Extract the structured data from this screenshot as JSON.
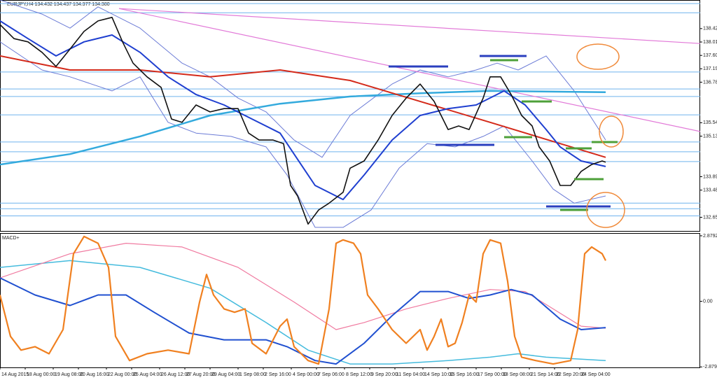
{
  "chart_data": [
    {
      "type": "line",
      "title": "EURJPY,H4 134.432 134.437 134.377 134.380",
      "xlim": [
        0,
        250
      ],
      "ylim": [
        132.24,
        139.3
      ],
      "yticks": [
        138.426,
        138.016,
        137.606,
        137.198,
        136.788,
        135.548,
        135.138,
        133.898,
        133.488,
        132.658
      ],
      "levels": [
        139.19,
        138.91,
        137.1,
        136.58,
        136.35,
        135.79,
        134.96,
        134.66,
        134.36,
        133.09,
        132.92,
        132.7
      ],
      "levels_color": "#6fb3ee",
      "series": [
        {
          "color": "#6b7bd6",
          "width": 1,
          "x": [
            0,
            15,
            25,
            35,
            50,
            65,
            75,
            85,
            95,
            105,
            115,
            125,
            140,
            150,
            160,
            170,
            177.5,
            185,
            195,
            205,
            216.25
          ],
          "values": [
            139.3,
            138.87,
            138.44,
            139.09,
            138.44,
            137.37,
            136.95,
            136.3,
            135.88,
            135.02,
            134.49,
            135.77,
            136.73,
            137.16,
            136.95,
            137.16,
            137.37,
            137.16,
            137.59,
            136.52,
            135.02
          ]
        },
        {
          "color": "#6b7bd6",
          "width": 1,
          "x": [
            0,
            15,
            25,
            40,
            50,
            60,
            70,
            82.5,
            95,
            102.5,
            112.5,
            122.5,
            132.5,
            142.5,
            152.5,
            162.5,
            172.5,
            180,
            190,
            197.5,
            205,
            216.25
          ],
          "values": [
            138.02,
            137.16,
            136.95,
            136.52,
            136.95,
            135.56,
            135.23,
            135.13,
            134.81,
            133.95,
            132.35,
            132.35,
            132.88,
            134.16,
            134.91,
            134.81,
            135.13,
            135.45,
            134.38,
            133.52,
            133.09,
            133.31
          ]
        },
        {
          "color": "#e27ad8",
          "width": 1.2,
          "x": [
            42.5,
            250
          ],
          "values": [
            139.04,
            137.97
          ]
        },
        {
          "color": "#e27ad8",
          "width": 1.2,
          "x": [
            42.5,
            250
          ],
          "values": [
            139.04,
            135.28
          ]
        },
        {
          "color": "#33aadd",
          "width": 2.5,
          "x": [
            0,
            25,
            50,
            75,
            100,
            125,
            150,
            175,
            216.25
          ],
          "values": [
            134.27,
            134.59,
            135.13,
            135.77,
            136.13,
            136.35,
            136.45,
            136.52,
            136.48
          ]
        },
        {
          "color": "#d42a1a",
          "width": 2,
          "x": [
            0,
            25,
            50,
            75,
            100,
            125,
            150,
            175,
            200,
            216.25
          ],
          "values": [
            137.59,
            137.16,
            137.16,
            136.95,
            137.16,
            136.84,
            136.2,
            135.56,
            134.91,
            134.49
          ]
        },
        {
          "color": "#1f3fd0",
          "width": 2,
          "x": [
            0,
            10,
            20,
            30,
            40,
            50,
            60,
            70,
            80,
            90,
            100,
            105,
            112.5,
            122.5,
            130,
            140,
            150,
            160,
            170,
            180,
            187.5,
            195,
            200,
            207.5,
            216.25
          ],
          "values": [
            138.66,
            138.12,
            137.59,
            138.02,
            138.23,
            137.7,
            136.95,
            136.41,
            136.09,
            135.66,
            135.23,
            134.59,
            133.63,
            133.2,
            133.95,
            135.02,
            135.77,
            135.98,
            136.09,
            136.52,
            136.09,
            135.34,
            134.81,
            134.38,
            134.21
          ]
        },
        {
          "color": "#111111",
          "width": 1.6,
          "x": [
            0,
            5,
            10,
            15,
            20,
            25,
            30,
            35,
            40,
            43.75,
            47.5,
            52.5,
            57.5,
            61.25,
            65,
            70,
            75,
            80,
            85,
            88.75,
            92.5,
            97.5,
            101.25,
            103.75,
            106.25,
            110,
            113.75,
            117.5,
            122.5,
            125,
            130,
            135,
            140,
            145,
            150,
            155,
            160,
            163.75,
            167.5,
            172.5,
            175,
            178.75,
            182.5,
            186.25,
            190,
            192.5,
            196.25,
            200,
            203.75,
            207.5,
            211.25,
            215,
            216.25
          ],
          "values": [
            138.55,
            138.12,
            138.02,
            137.7,
            137.27,
            137.8,
            138.34,
            138.66,
            138.77,
            138.02,
            137.37,
            136.95,
            136.63,
            135.66,
            135.56,
            136.09,
            135.88,
            135.98,
            135.98,
            135.23,
            135.02,
            135.02,
            134.91,
            133.63,
            133.31,
            132.45,
            132.88,
            133.09,
            133.42,
            134.16,
            134.38,
            135.02,
            135.77,
            136.3,
            136.73,
            136.2,
            135.34,
            135.45,
            135.34,
            136.3,
            136.95,
            136.95,
            136.41,
            135.77,
            135.45,
            134.81,
            134.38,
            133.63,
            133.63,
            134.06,
            134.27,
            134.38,
            134.34
          ]
        }
      ]
    },
    {
      "type": "line",
      "title": "MACD+",
      "xlim": [
        0,
        250
      ],
      "ylim": [
        -2.9,
        3.0
      ],
      "yticks": [
        2.8792,
        {
          "value": 0,
          "label": "0.00"
        },
        -2.8792
      ],
      "xticks": [
        {
          "value": 0,
          "label": "14 Aug 2015"
        },
        {
          "value": 9,
          "label": "18 Aug 00:00"
        },
        {
          "value": 19,
          "label": "19 Aug 08:00"
        },
        {
          "value": 28,
          "label": "20 Aug 16:00"
        },
        {
          "value": 38,
          "label": "22 Aug 00:00"
        },
        {
          "value": 47,
          "label": "25 Aug 04:00"
        },
        {
          "value": 57,
          "label": "26 Aug 12:00"
        },
        {
          "value": 66,
          "label": "27 Aug 20:00"
        },
        {
          "value": 75,
          "label": "29 Aug 04:00"
        },
        {
          "value": 85,
          "label": "1 Sep 08:00"
        },
        {
          "value": 94,
          "label": "2 Sep 16:00"
        },
        {
          "value": 104,
          "label": "4 Sep 00:00"
        },
        {
          "value": 113,
          "label": "7 Sep 06:00"
        },
        {
          "value": 123,
          "label": "8 Sep 12:00"
        },
        {
          "value": 132,
          "label": "9 Sep 20:00"
        },
        {
          "value": 141,
          "label": "11 Sep 04:00"
        },
        {
          "value": 151,
          "label": "14 Sep 10:00"
        },
        {
          "value": 160,
          "label": "15 Sep 16:00"
        },
        {
          "value": 170,
          "label": "17 Sep 00:00"
        },
        {
          "value": 179,
          "label": "18 Sep 08:00"
        },
        {
          "value": 189,
          "label": "21 Sep 14:00"
        },
        {
          "value": 198,
          "label": "22 Sep 20:00"
        },
        {
          "value": 207,
          "label": "24 Sep 04:00"
        }
      ],
      "series": [
        {
          "color": "#44bbdd",
          "width": 1.5,
          "x": [
            0,
            25,
            50,
            75,
            95,
            110,
            125,
            140,
            160,
            175,
            185,
            195,
            216.25
          ],
          "values": [
            1.49,
            1.79,
            1.49,
            0.58,
            -0.93,
            -2.14,
            -2.75,
            -2.75,
            -2.6,
            -2.45,
            -2.3,
            -2.45,
            -2.6
          ]
        },
        {
          "color": "#f07aa0",
          "width": 1.2,
          "x": [
            0,
            25,
            45,
            65,
            85,
            105,
            120,
            130,
            145,
            160,
            175,
            187.5,
            197.5,
            207.5,
            216.25
          ],
          "values": [
            1.03,
            2.09,
            2.55,
            2.39,
            1.49,
            -0.03,
            -1.24,
            -0.93,
            -0.33,
            0.13,
            0.52,
            0.43,
            -0.33,
            -1.09,
            -1.18
          ]
        },
        {
          "color": "#2050d0",
          "width": 2,
          "x": [
            0,
            12.5,
            25,
            35,
            45,
            55,
            67.5,
            80,
            95,
            102.5,
            112.5,
            120,
            130,
            140,
            150,
            160,
            167.5,
            175,
            182.5,
            190,
            200,
            207.5,
            216.25
          ],
          "values": [
            1.03,
            0.28,
            -0.18,
            0.28,
            0.28,
            -0.48,
            -1.39,
            -1.69,
            -1.69,
            -1.99,
            -2.6,
            -2.75,
            -1.84,
            -0.63,
            0.43,
            0.43,
            0.13,
            0.28,
            0.52,
            0.28,
            -0.78,
            -1.24,
            -1.15
          ]
        },
        {
          "color": "#f08020",
          "width": 2.2,
          "x": [
            0,
            3.75,
            7.5,
            12.5,
            17.5,
            22.5,
            26.25,
            30,
            35,
            38.75,
            41.25,
            46.25,
            52.5,
            60,
            67.5,
            71.25,
            73.75,
            76.25,
            80,
            83.75,
            87.5,
            90,
            95,
            100,
            102.5,
            105,
            110,
            113.75,
            117.5,
            120,
            122.5,
            126.25,
            128.75,
            131.25,
            135,
            140,
            145,
            150,
            152.5,
            155,
            157.5,
            160,
            162.5,
            165,
            167.5,
            170,
            172.5,
            175,
            178.75,
            181.25,
            183.75,
            186.25,
            191.25,
            197.5,
            203.75,
            206.25,
            208.75,
            211.25,
            215,
            216.25
          ],
          "values": [
            0.28,
            -1.54,
            -2.14,
            -1.99,
            -2.3,
            -1.24,
            2.09,
            2.85,
            2.55,
            1.49,
            -1.54,
            -2.6,
            -2.3,
            -2.14,
            -2.3,
            -0.03,
            1.18,
            0.28,
            -0.33,
            -0.48,
            -0.33,
            -1.84,
            -2.3,
            -1.09,
            -0.78,
            -1.99,
            -2.6,
            -2.75,
            -0.33,
            2.55,
            2.7,
            2.55,
            2.09,
            0.28,
            -0.33,
            -1.24,
            -1.84,
            -1.24,
            -2.14,
            -1.54,
            -0.78,
            -1.99,
            -1.84,
            -0.93,
            0.28,
            -0.03,
            2.09,
            2.7,
            2.55,
            0.88,
            -1.54,
            -2.45,
            -2.6,
            -2.75,
            -2.6,
            -1.24,
            2.09,
            2.39,
            2.09,
            1.79
          ]
        }
      ]
    }
  ]
}
